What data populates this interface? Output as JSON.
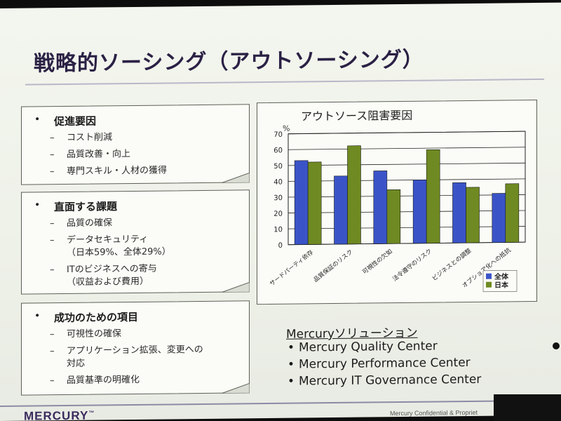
{
  "title": "戦略的ソーシング（アウトソーシング）",
  "boxes": [
    {
      "heading": "促進要因",
      "items": [
        "コスト削減",
        "品質改善・向上",
        "専門スキル・人材の獲得"
      ]
    },
    {
      "heading": "直面する課題",
      "items": [
        "品質の確保",
        "データセキュリティ",
        "（日本59%、全体29%）",
        "ITのビジネスへの寄与",
        "（収益および費用）"
      ]
    },
    {
      "heading": "成功のための項目",
      "items": [
        "可視性の確保",
        "アプリケーション拡張、変更への",
        "対応",
        "品質基準の明確化"
      ]
    }
  ],
  "bullet": "•",
  "dash": "–",
  "chart_data": {
    "type": "bar",
    "title": "アウトソース阻害要因",
    "ylabel": "%",
    "ylim": [
      0,
      70
    ],
    "yticks": [
      0,
      10,
      20,
      30,
      40,
      50,
      60,
      70
    ],
    "categories": [
      "サードパーティ依存",
      "品質保証のリスク",
      "可視性の欠如",
      "法令遵守のリスク",
      "ビジネスとの調整",
      "オプショア化への抵抗"
    ],
    "series": [
      {
        "name": "全体",
        "color": "#3a54c8",
        "values": [
          53,
          43,
          46,
          40,
          38,
          31
        ]
      },
      {
        "name": "日本",
        "color": "#6f8a22",
        "values": [
          52,
          62,
          34,
          59,
          35,
          37
        ]
      }
    ],
    "grid": true,
    "legend": "bottom-right"
  },
  "solutions": {
    "heading": "Mercuryソリューション",
    "items": [
      "Mercury Quality Center",
      "Mercury Performance Center",
      "Mercury IT Governance Center"
    ]
  },
  "footer": {
    "logo": "MERCURY",
    "logo_tm": "™",
    "confidential": "Mercury Confidential & Propriet"
  }
}
